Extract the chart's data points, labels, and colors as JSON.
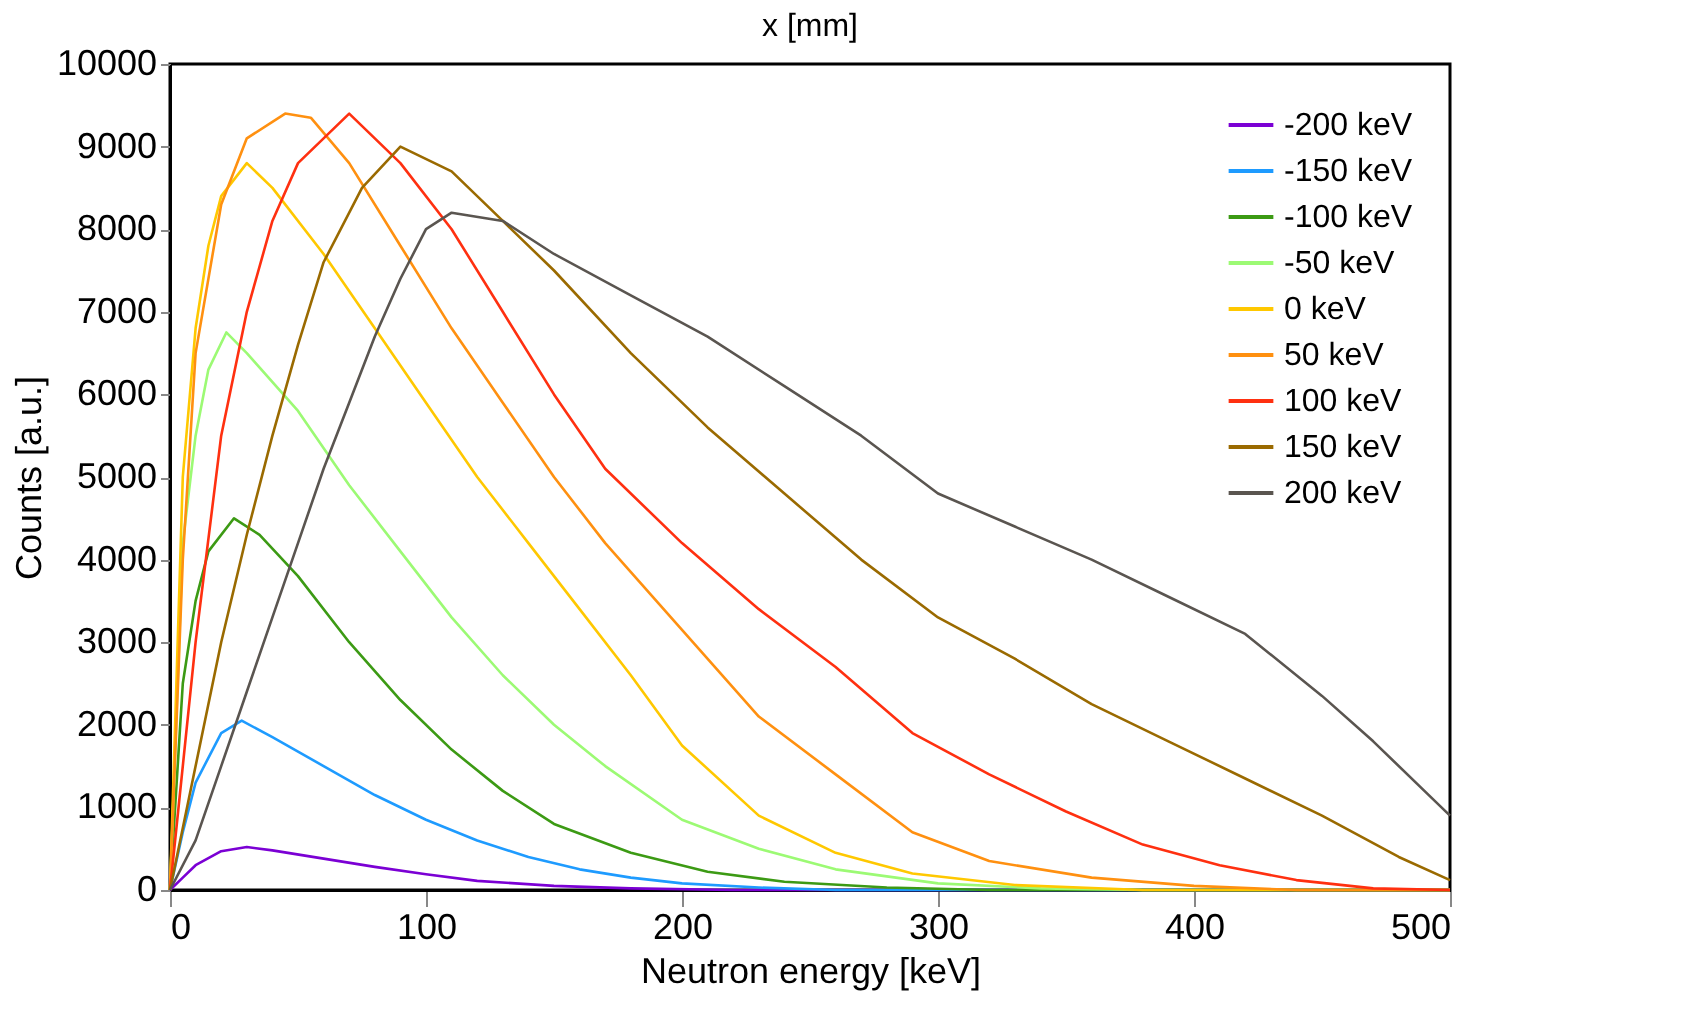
{
  "chart_data": {
    "type": "line",
    "xlabel": "Neutron energy [keV]",
    "ylabel": "Counts [a.u.]",
    "annotations": [
      "x [mm]"
    ],
    "xlim": [
      0,
      500
    ],
    "xticks": [
      0,
      100,
      200,
      300,
      400,
      500
    ],
    "ylim": [
      0,
      10000
    ],
    "yticks": [
      0,
      1000,
      2000,
      3000,
      4000,
      5000,
      6000,
      7000,
      8000,
      9000,
      10000
    ],
    "legend": "top right",
    "marker": "none",
    "line_style": "solid",
    "series": [
      {
        "name": "-200 keV",
        "color": "#7b00d4",
        "x": [
          0,
          5,
          10,
          20,
          30,
          40,
          60,
          80,
          100,
          120,
          150,
          180,
          220,
          500
        ],
        "values": [
          0,
          150,
          300,
          470,
          520,
          480,
          380,
          280,
          190,
          110,
          50,
          20,
          0,
          0
        ]
      },
      {
        "name": "-150 keV",
        "color": "#1e9bff",
        "x": [
          0,
          5,
          10,
          20,
          28,
          40,
          60,
          80,
          100,
          120,
          140,
          160,
          180,
          200,
          230,
          260,
          500
        ],
        "values": [
          0,
          700,
          1300,
          1900,
          2050,
          1850,
          1500,
          1150,
          850,
          600,
          400,
          250,
          150,
          80,
          30,
          0,
          0
        ]
      },
      {
        "name": "-100 keV",
        "color": "#3c9a14",
        "x": [
          0,
          5,
          10,
          15,
          25,
          35,
          50,
          70,
          90,
          110,
          130,
          150,
          180,
          210,
          240,
          280,
          320,
          500
        ],
        "values": [
          0,
          2500,
          3500,
          4100,
          4500,
          4300,
          3800,
          3000,
          2300,
          1700,
          1200,
          800,
          450,
          220,
          100,
          30,
          0,
          0
        ]
      },
      {
        "name": "-50 keV",
        "color": "#9cfa74",
        "x": [
          0,
          5,
          10,
          15,
          22,
          30,
          50,
          70,
          90,
          110,
          130,
          150,
          170,
          200,
          230,
          260,
          300,
          340,
          380,
          500
        ],
        "values": [
          0,
          4200,
          5500,
          6300,
          6750,
          6500,
          5800,
          4900,
          4100,
          3300,
          2600,
          2000,
          1500,
          850,
          500,
          250,
          80,
          20,
          0,
          0
        ]
      },
      {
        "name": "0 keV",
        "color": "#ffc800",
        "x": [
          0,
          5,
          10,
          15,
          20,
          30,
          40,
          60,
          80,
          100,
          120,
          140,
          160,
          180,
          200,
          230,
          260,
          290,
          330,
          380,
          500
        ],
        "values": [
          0,
          5000,
          6800,
          7800,
          8400,
          8800,
          8500,
          7700,
          6800,
          5900,
          5000,
          4200,
          3400,
          2600,
          1750,
          900,
          450,
          200,
          60,
          0,
          0
        ]
      },
      {
        "name": "50 keV",
        "color": "#ff9010",
        "x": [
          0,
          5,
          10,
          20,
          30,
          45,
          55,
          70,
          90,
          110,
          130,
          150,
          170,
          200,
          230,
          260,
          290,
          320,
          360,
          400,
          440,
          500
        ],
        "values": [
          0,
          4000,
          6500,
          8300,
          9100,
          9400,
          9350,
          8800,
          7800,
          6800,
          5900,
          5000,
          4200,
          3150,
          2100,
          1400,
          700,
          350,
          150,
          50,
          0,
          0
        ]
      },
      {
        "name": "100 keV",
        "color": "#ff3010",
        "x": [
          0,
          10,
          20,
          30,
          40,
          50,
          70,
          90,
          110,
          130,
          150,
          170,
          200,
          230,
          260,
          290,
          320,
          350,
          380,
          410,
          440,
          470,
          500
        ],
        "values": [
          0,
          3000,
          5500,
          7000,
          8100,
          8800,
          9400,
          8800,
          8000,
          7000,
          6000,
          5100,
          4200,
          3400,
          2700,
          1900,
          1400,
          950,
          550,
          300,
          120,
          20,
          0
        ]
      },
      {
        "name": "150 keV",
        "color": "#9a6a00",
        "x": [
          0,
          10,
          20,
          30,
          40,
          50,
          60,
          75,
          90,
          110,
          130,
          150,
          180,
          210,
          240,
          270,
          300,
          330,
          360,
          390,
          420,
          450,
          480,
          500
        ],
        "values": [
          0,
          1500,
          3000,
          4300,
          5500,
          6600,
          7600,
          8500,
          9000,
          8700,
          8100,
          7500,
          6500,
          5600,
          4800,
          4000,
          3300,
          2800,
          2250,
          1800,
          1350,
          900,
          400,
          120
        ]
      },
      {
        "name": "200 keV",
        "color": "#5a5550",
        "x": [
          0,
          10,
          20,
          30,
          40,
          50,
          60,
          70,
          80,
          90,
          100,
          110,
          130,
          150,
          180,
          210,
          240,
          270,
          300,
          330,
          360,
          390,
          420,
          450,
          470,
          490,
          500
        ],
        "values": [
          0,
          600,
          1500,
          2400,
          3300,
          4200,
          5100,
          5900,
          6700,
          7400,
          8000,
          8200,
          8100,
          7700,
          7200,
          6700,
          6100,
          5500,
          4800,
          4400,
          4000,
          3550,
          3100,
          2350,
          1800,
          1200,
          900
        ]
      }
    ]
  }
}
